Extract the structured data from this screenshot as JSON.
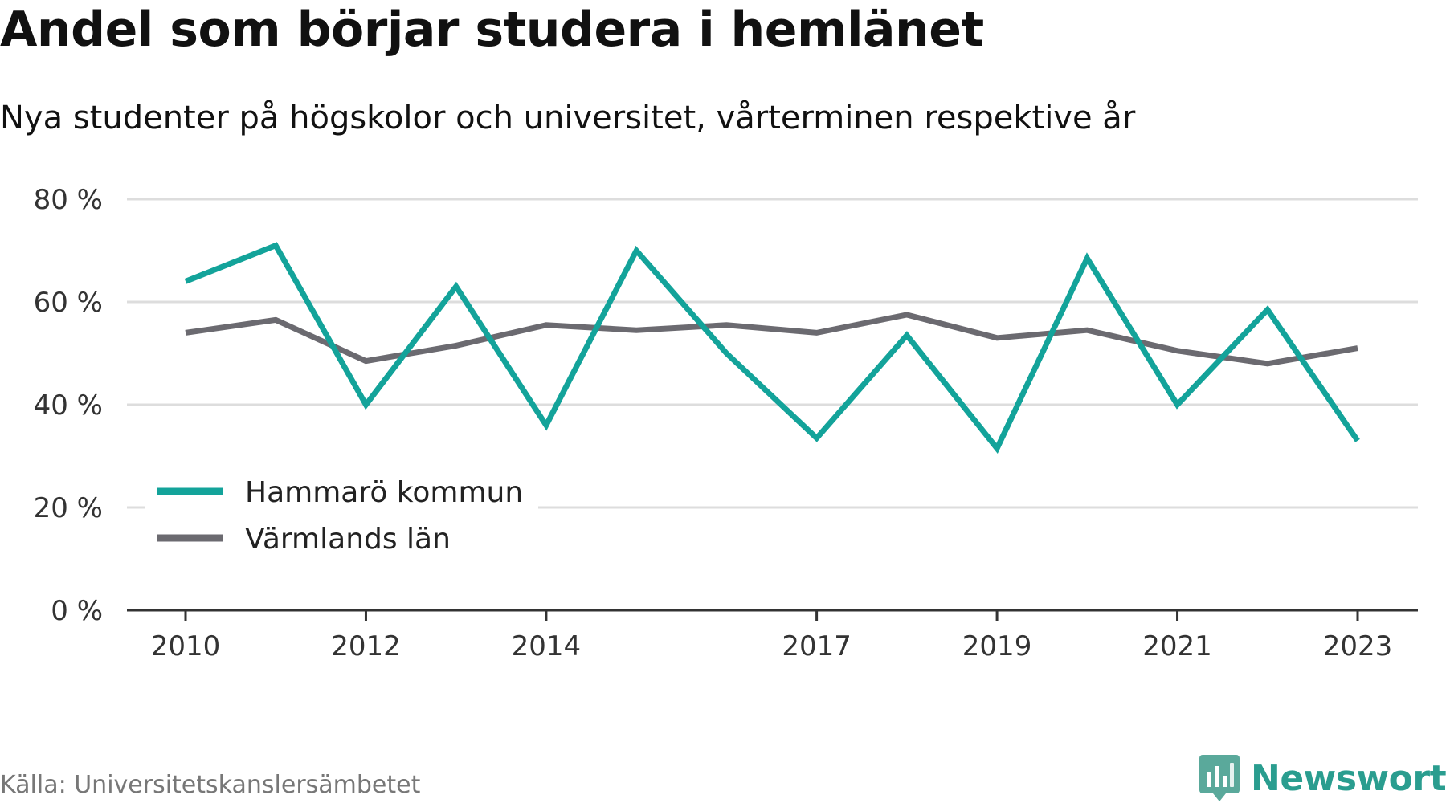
{
  "title": "Andel som börjar studera i hemlänet",
  "subtitle": "Nya studenter på högskolor och universitet, vårterminen respektive år",
  "source": "Källa: Universitetskanslersämbetet",
  "brand": {
    "name": "Newsworthy",
    "icon": "newsworthy-logo-icon",
    "color": "#2a9d8f"
  },
  "chart_data": {
    "type": "line",
    "x": [
      2010,
      2011,
      2012,
      2013,
      2014,
      2015,
      2016,
      2017,
      2018,
      2019,
      2020,
      2021,
      2022,
      2023
    ],
    "x_tick_labels": [
      "2010",
      "2012",
      "2014",
      "2017",
      "2019",
      "2021",
      "2023"
    ],
    "y_tick_labels": [
      "0 %",
      "20 %",
      "40 %",
      "60 %",
      "80 %"
    ],
    "ylim": [
      0,
      80
    ],
    "grid": true,
    "legend_position": "bottom-left",
    "series": [
      {
        "name": "Hammarö kommun",
        "color": "#13a39a",
        "values": [
          64,
          71,
          40,
          63,
          36,
          70,
          50,
          33.5,
          53.5,
          31.5,
          68.5,
          40,
          58.5,
          33
        ]
      },
      {
        "name": "Värmlands län",
        "color": "#6b6a70",
        "values": [
          54,
          56.5,
          48.5,
          51.5,
          55.5,
          54.5,
          55.5,
          54,
          57.5,
          53,
          54.5,
          50.5,
          48,
          51
        ]
      }
    ]
  }
}
